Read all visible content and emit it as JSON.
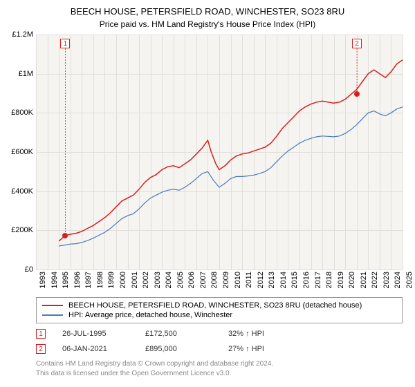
{
  "title": "BEECH HOUSE, PETERSFIELD ROAD, WINCHESTER, SO23 8RU",
  "subtitle": "Price paid vs. HM Land Registry's House Price Index (HPI)",
  "chart": {
    "type": "line",
    "background_color": "#f5f4f0",
    "grid_color": "#e0dfda",
    "ylim": [
      0,
      1200000
    ],
    "y_ticks": [
      0,
      200000,
      400000,
      600000,
      800000,
      1000000,
      1200000
    ],
    "y_tick_labels": [
      "£0",
      "£200K",
      "£400K",
      "£600K",
      "£800K",
      "£1M",
      "£1.2M"
    ],
    "x_range": [
      1993,
      2025
    ],
    "x_ticks": [
      1993,
      1994,
      1995,
      1996,
      1997,
      1998,
      1999,
      2000,
      2001,
      2002,
      2003,
      2004,
      2005,
      2006,
      2007,
      2008,
      2009,
      2010,
      2011,
      2012,
      2013,
      2014,
      2015,
      2016,
      2017,
      2018,
      2019,
      2020,
      2021,
      2022,
      2023,
      2024,
      2025
    ],
    "series": [
      {
        "name": "price_paid",
        "color": "#d81f1f",
        "stroke_width": 1.5,
        "points": [
          [
            1995.0,
            145000
          ],
          [
            1995.2,
            155000
          ],
          [
            1995.5,
            172500
          ],
          [
            1996,
            180000
          ],
          [
            1996.5,
            185000
          ],
          [
            1997,
            195000
          ],
          [
            1997.5,
            210000
          ],
          [
            1998,
            225000
          ],
          [
            1998.5,
            245000
          ],
          [
            1999,
            265000
          ],
          [
            1999.5,
            290000
          ],
          [
            2000,
            320000
          ],
          [
            2000.5,
            350000
          ],
          [
            2001,
            365000
          ],
          [
            2001.5,
            380000
          ],
          [
            2002,
            410000
          ],
          [
            2002.5,
            445000
          ],
          [
            2003,
            470000
          ],
          [
            2003.5,
            485000
          ],
          [
            2004,
            510000
          ],
          [
            2004.5,
            525000
          ],
          [
            2005,
            530000
          ],
          [
            2005.5,
            520000
          ],
          [
            2006,
            540000
          ],
          [
            2006.5,
            560000
          ],
          [
            2007,
            590000
          ],
          [
            2007.5,
            620000
          ],
          [
            2008,
            660000
          ],
          [
            2008.3,
            600000
          ],
          [
            2008.7,
            540000
          ],
          [
            2009,
            510000
          ],
          [
            2009.5,
            530000
          ],
          [
            2010,
            560000
          ],
          [
            2010.5,
            580000
          ],
          [
            2011,
            590000
          ],
          [
            2011.5,
            595000
          ],
          [
            2012,
            605000
          ],
          [
            2012.5,
            615000
          ],
          [
            2013,
            625000
          ],
          [
            2013.5,
            645000
          ],
          [
            2014,
            680000
          ],
          [
            2014.5,
            720000
          ],
          [
            2015,
            750000
          ],
          [
            2015.5,
            780000
          ],
          [
            2016,
            810000
          ],
          [
            2016.5,
            830000
          ],
          [
            2017,
            845000
          ],
          [
            2017.5,
            855000
          ],
          [
            2018,
            860000
          ],
          [
            2018.5,
            855000
          ],
          [
            2019,
            850000
          ],
          [
            2019.5,
            855000
          ],
          [
            2020,
            870000
          ],
          [
            2020.5,
            895000
          ],
          [
            2021,
            920000
          ],
          [
            2021.5,
            960000
          ],
          [
            2022,
            1000000
          ],
          [
            2022.5,
            1020000
          ],
          [
            2023,
            1000000
          ],
          [
            2023.5,
            980000
          ],
          [
            2024,
            1010000
          ],
          [
            2024.5,
            1050000
          ],
          [
            2025,
            1070000
          ]
        ]
      },
      {
        "name": "hpi",
        "color": "#4a7ab8",
        "stroke_width": 1.2,
        "points": [
          [
            1995.0,
            120000
          ],
          [
            1995.5,
            125000
          ],
          [
            1996,
            130000
          ],
          [
            1996.5,
            132000
          ],
          [
            1997,
            138000
          ],
          [
            1997.5,
            148000
          ],
          [
            1998,
            160000
          ],
          [
            1998.5,
            175000
          ],
          [
            1999,
            190000
          ],
          [
            1999.5,
            210000
          ],
          [
            2000,
            235000
          ],
          [
            2000.5,
            260000
          ],
          [
            2001,
            275000
          ],
          [
            2001.5,
            285000
          ],
          [
            2002,
            310000
          ],
          [
            2002.5,
            340000
          ],
          [
            2003,
            365000
          ],
          [
            2003.5,
            380000
          ],
          [
            2004,
            395000
          ],
          [
            2004.5,
            405000
          ],
          [
            2005,
            410000
          ],
          [
            2005.5,
            405000
          ],
          [
            2006,
            420000
          ],
          [
            2006.5,
            440000
          ],
          [
            2007,
            465000
          ],
          [
            2007.5,
            490000
          ],
          [
            2008,
            500000
          ],
          [
            2008.5,
            455000
          ],
          [
            2009,
            420000
          ],
          [
            2009.5,
            440000
          ],
          [
            2010,
            465000
          ],
          [
            2010.5,
            475000
          ],
          [
            2011,
            475000
          ],
          [
            2011.5,
            478000
          ],
          [
            2012,
            482000
          ],
          [
            2012.5,
            490000
          ],
          [
            2013,
            500000
          ],
          [
            2013.5,
            520000
          ],
          [
            2014,
            550000
          ],
          [
            2014.5,
            580000
          ],
          [
            2015,
            605000
          ],
          [
            2015.5,
            625000
          ],
          [
            2016,
            645000
          ],
          [
            2016.5,
            660000
          ],
          [
            2017,
            670000
          ],
          [
            2017.5,
            678000
          ],
          [
            2018,
            682000
          ],
          [
            2018.5,
            680000
          ],
          [
            2019,
            678000
          ],
          [
            2019.5,
            682000
          ],
          [
            2020,
            695000
          ],
          [
            2020.5,
            715000
          ],
          [
            2021,
            740000
          ],
          [
            2021.5,
            770000
          ],
          [
            2022,
            800000
          ],
          [
            2022.5,
            810000
          ],
          [
            2023,
            795000
          ],
          [
            2023.5,
            785000
          ],
          [
            2024,
            800000
          ],
          [
            2024.5,
            820000
          ],
          [
            2025,
            830000
          ]
        ]
      }
    ],
    "sale_points": [
      {
        "x": 1995.56,
        "y": 172500,
        "label": "1"
      },
      {
        "x": 2021.02,
        "y": 895000,
        "label": "2"
      }
    ],
    "sale_color": "#d81f1f"
  },
  "legend": {
    "items": [
      {
        "color": "#d81f1f",
        "label": "BEECH HOUSE, PETERSFIELD ROAD, WINCHESTER, SO23 8RU (detached house)"
      },
      {
        "color": "#4a7ab8",
        "label": "HPI: Average price, detached house, Winchester"
      }
    ]
  },
  "sales_table": {
    "rows": [
      {
        "marker": "1",
        "date": "26-JUL-1995",
        "price": "£172,500",
        "delta": "32% ↑ HPI"
      },
      {
        "marker": "2",
        "date": "06-JAN-2021",
        "price": "£895,000",
        "delta": "27% ↑ HPI"
      }
    ]
  },
  "footer": {
    "line1": "Contains HM Land Registry data © Crown copyright and database right 2024.",
    "line2": "This data is licensed under the Open Government Licence v3.0."
  }
}
